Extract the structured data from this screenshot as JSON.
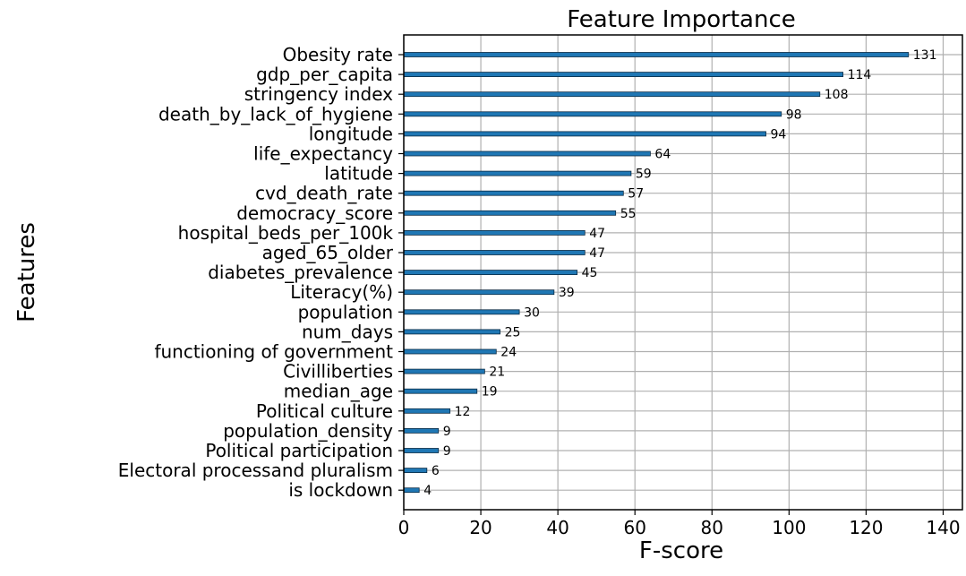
{
  "chart_data": {
    "type": "bar",
    "orientation": "horizontal",
    "title": "Feature Importance",
    "xlabel": "F-score",
    "ylabel": "Features",
    "xlim": [
      0,
      145
    ],
    "xticks": [
      0,
      20,
      40,
      60,
      80,
      100,
      120,
      140
    ],
    "grid": true,
    "bar_color": "#1f77b4",
    "categories": [
      "Obesity rate",
      "gdp_per_capita",
      "stringency index",
      "death_by_lack_of_hygiene",
      "longitude",
      "life_expectancy",
      "latitude",
      "cvd_death_rate",
      "democracy_score",
      "hospital_beds_per_100k",
      "aged_65_older",
      "diabetes_prevalence",
      "Literacy(%)",
      "population",
      "num_days",
      "functioning of government",
      "Civilliberties",
      "median_age",
      "Political culture",
      "population_density",
      "Political participation",
      "Electoral processand pluralism",
      "is lockdown"
    ],
    "values": [
      131,
      114,
      108,
      98,
      94,
      64,
      59,
      57,
      55,
      47,
      47,
      45,
      39,
      30,
      25,
      24,
      21,
      19,
      12,
      9,
      9,
      6,
      4
    ]
  }
}
